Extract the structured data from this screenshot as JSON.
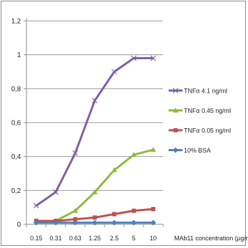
{
  "chart_data": {
    "type": "line",
    "title": "",
    "xlabel": "MAb11 concentration (µg/ml)",
    "ylabel": "",
    "categories": [
      "0.15",
      "0.31",
      "0.63",
      "1.25",
      "2.5",
      "5",
      "10"
    ],
    "ylim": [
      0,
      1.2
    ],
    "yticks": [
      "0",
      "0,2",
      "0,4",
      "0,6",
      "0,8",
      "1",
      "1,2"
    ],
    "grid": true,
    "legend_position": "right",
    "series": [
      {
        "name": "TNFα 4.1 ng/ml",
        "color": "#7d60a0",
        "marker": "x",
        "values": [
          0.11,
          0.19,
          0.42,
          0.73,
          0.9,
          0.98,
          0.98
        ]
      },
      {
        "name": "TNFα 0.45 ng/ml",
        "color": "#8cbc3c",
        "marker": "triangle",
        "values": [
          0.02,
          0.02,
          0.08,
          0.19,
          0.32,
          0.41,
          0.44
        ]
      },
      {
        "name": "TNFα 0.05 ng/ml",
        "color": "#c0504d",
        "marker": "square",
        "values": [
          0.02,
          0.02,
          0.03,
          0.04,
          0.06,
          0.08,
          0.09
        ]
      },
      {
        "name": "10% BSA",
        "color": "#4f81bd",
        "marker": "diamond",
        "values": [
          0.01,
          0.01,
          0.01,
          0.01,
          0.01,
          0.01,
          0.01
        ]
      }
    ]
  }
}
